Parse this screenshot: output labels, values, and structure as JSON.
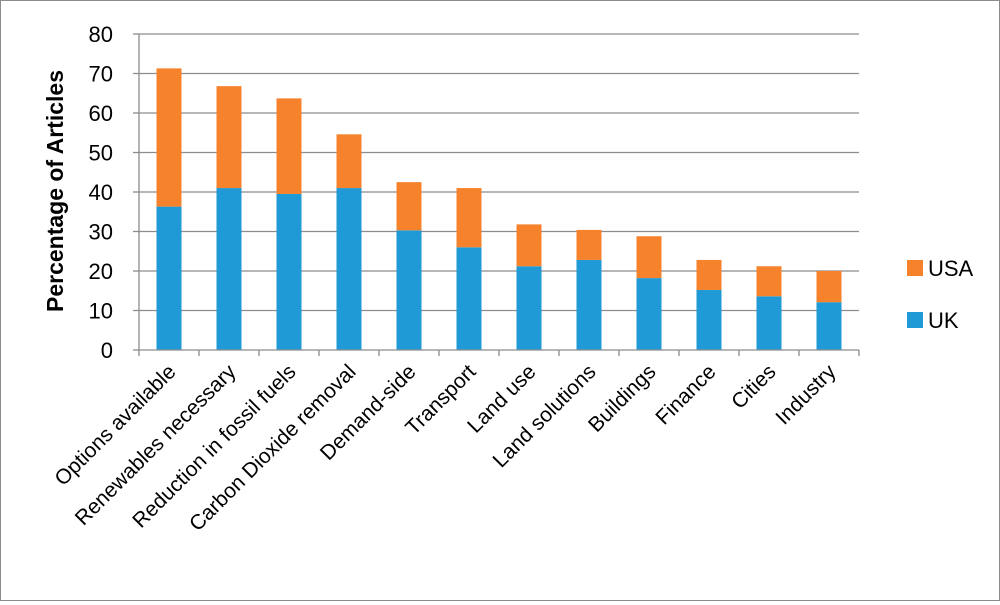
{
  "chart_data": {
    "type": "bar",
    "stacked": true,
    "categories": [
      "Options available",
      "Renewables necessary",
      "Reduction in fossil fuels",
      "Carbon Dioxide removal",
      "Demand-side",
      "Transport",
      "Land use",
      "Land solutions",
      "Buildings",
      "Finance",
      "Cities",
      "Industry"
    ],
    "series": [
      {
        "name": "UK",
        "color": "#1f9ad6",
        "values": [
          36.3,
          41,
          39.5,
          41,
          30.3,
          26,
          21.2,
          22.8,
          18.2,
          15.2,
          13.6,
          12.1
        ]
      },
      {
        "name": "USA",
        "color": "#f7822c",
        "values": [
          35,
          25.8,
          24.2,
          13.6,
          12.2,
          15,
          10.6,
          7.6,
          10.6,
          7.6,
          7.6,
          7.9
        ]
      }
    ],
    "title": "",
    "xlabel": "",
    "ylabel": "Percentage of Articles",
    "ylim": [
      0,
      80
    ],
    "yticks": [
      0,
      10,
      20,
      30,
      40,
      50,
      60,
      70,
      80
    ],
    "grid": true,
    "legend": "right"
  }
}
